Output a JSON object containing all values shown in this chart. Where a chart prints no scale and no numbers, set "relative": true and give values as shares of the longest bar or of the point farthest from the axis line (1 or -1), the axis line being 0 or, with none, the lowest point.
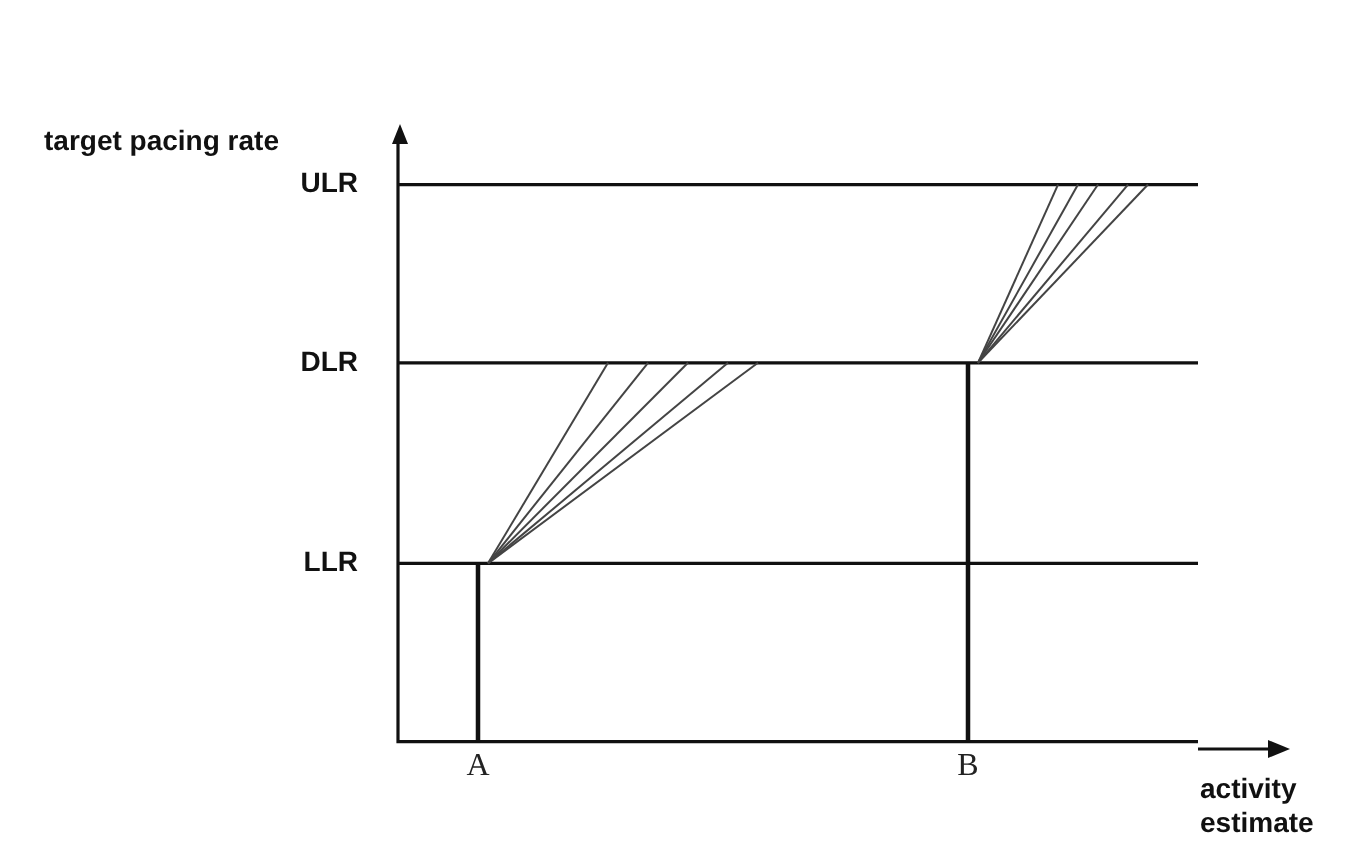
{
  "chart_data": {
    "type": "line",
    "xlabel": "activity estimate",
    "ylabel": "target pacing rate",
    "relative": true,
    "categories": [
      null,
      null,
      null,
      null,
      null,
      null,
      null,
      null,
      "A",
      null,
      null,
      null,
      null,
      null,
      null,
      null,
      null,
      null,
      null,
      null,
      null,
      null,
      null,
      null,
      null,
      null,
      null,
      null,
      null,
      null,
      null,
      null,
      null,
      null,
      null,
      null,
      null,
      null,
      null,
      null,
      null,
      null,
      null,
      null,
      null,
      null,
      null,
      null,
      null,
      null,
      null,
      null,
      null,
      null,
      null,
      null,
      null,
      "B",
      null,
      null,
      null,
      null,
      null,
      null,
      null,
      null,
      null,
      null,
      null,
      null,
      null,
      null,
      null,
      null,
      null,
      null,
      null,
      null,
      null,
      null,
      null
    ],
    "ref_lines": [
      {
        "axis": "y",
        "value": 0.32,
        "label": "LLR",
        "color": "#111111"
      },
      {
        "axis": "y",
        "value": 0.68,
        "label": "DLR",
        "color": "#111111"
      },
      {
        "axis": "y",
        "value": 1,
        "label": "ULR",
        "color": "#111111"
      }
    ],
    "series": [
      {
        "type": "bar",
        "color": "#111111",
        "values": [
          null,
          null,
          null,
          null,
          null,
          null,
          null,
          null,
          0.32,
          null,
          null,
          null,
          null,
          null,
          null,
          null,
          null,
          null,
          null,
          null,
          null,
          null,
          null,
          null,
          null,
          null,
          null,
          null,
          null,
          null,
          null,
          null,
          null,
          null,
          null,
          null,
          null,
          null,
          null,
          null,
          null,
          null,
          null,
          null,
          null,
          null,
          null,
          null,
          null,
          null,
          null,
          null,
          null,
          null,
          null,
          null,
          null,
          0.68,
          null,
          null,
          null,
          null,
          null,
          null,
          null,
          null,
          null,
          null,
          null,
          null,
          null,
          null,
          null,
          null,
          null,
          null,
          null,
          null,
          null,
          null,
          null
        ]
      },
      {
        "color": "#444444",
        "values": [
          null,
          null,
          null,
          null,
          null,
          null,
          null,
          null,
          null,
          0.32,
          null,
          null,
          null,
          null,
          null,
          null,
          null,
          null,
          null,
          null,
          null,
          0.68,
          null,
          null,
          null,
          null,
          null,
          null,
          null,
          null,
          null,
          null,
          null,
          null,
          null,
          null,
          null,
          null,
          null,
          null,
          null,
          null,
          null,
          null,
          null,
          null,
          null,
          null,
          null,
          null,
          null,
          null,
          null,
          null,
          null,
          null,
          null,
          null,
          null,
          null,
          null,
          null,
          null,
          null,
          null,
          null,
          null,
          null,
          null,
          null,
          null,
          null,
          null,
          null,
          null,
          null,
          null,
          null,
          null,
          null,
          null
        ]
      },
      {
        "color": "#444444",
        "values": [
          null,
          null,
          null,
          null,
          null,
          null,
          null,
          null,
          null,
          0.32,
          null,
          null,
          null,
          null,
          null,
          null,
          null,
          null,
          null,
          null,
          null,
          null,
          null,
          null,
          null,
          0.68,
          null,
          null,
          null,
          null,
          null,
          null,
          null,
          null,
          null,
          null,
          null,
          null,
          null,
          null,
          null,
          null,
          null,
          null,
          null,
          null,
          null,
          null,
          null,
          null,
          null,
          null,
          null,
          null,
          null,
          null,
          null,
          null,
          null,
          null,
          null,
          null,
          null,
          null,
          null,
          null,
          null,
          null,
          null,
          null,
          null,
          null,
          null,
          null,
          null,
          null,
          null,
          null,
          null,
          null,
          null
        ]
      },
      {
        "color": "#444444",
        "values": [
          null,
          null,
          null,
          null,
          null,
          null,
          null,
          null,
          null,
          0.32,
          null,
          null,
          null,
          null,
          null,
          null,
          null,
          null,
          null,
          null,
          null,
          null,
          null,
          null,
          null,
          null,
          null,
          null,
          null,
          0.68,
          null,
          null,
          null,
          null,
          null,
          null,
          null,
          null,
          null,
          null,
          null,
          null,
          null,
          null,
          null,
          null,
          null,
          null,
          null,
          null,
          null,
          null,
          null,
          null,
          null,
          null,
          null,
          null,
          null,
          null,
          null,
          null,
          null,
          null,
          null,
          null,
          null,
          null,
          null,
          null,
          null,
          null,
          null,
          null,
          null,
          null,
          null,
          null,
          null,
          null,
          null
        ]
      },
      {
        "color": "#444444",
        "values": [
          null,
          null,
          null,
          null,
          null,
          null,
          null,
          null,
          null,
          0.32,
          null,
          null,
          null,
          null,
          null,
          null,
          null,
          null,
          null,
          null,
          null,
          null,
          null,
          null,
          null,
          null,
          null,
          null,
          null,
          null,
          null,
          null,
          null,
          0.68,
          null,
          null,
          null,
          null,
          null,
          null,
          null,
          null,
          null,
          null,
          null,
          null,
          null,
          null,
          null,
          null,
          null,
          null,
          null,
          null,
          null,
          null,
          null,
          null,
          null,
          null,
          null,
          null,
          null,
          null,
          null,
          null,
          null,
          null,
          null,
          null,
          null,
          null,
          null,
          null,
          null,
          null,
          null,
          null,
          null,
          null,
          null
        ]
      },
      {
        "color": "#444444",
        "values": [
          null,
          null,
          null,
          null,
          null,
          null,
          null,
          null,
          null,
          0.32,
          null,
          null,
          null,
          null,
          null,
          null,
          null,
          null,
          null,
          null,
          null,
          null,
          null,
          null,
          null,
          null,
          null,
          null,
          null,
          null,
          null,
          null,
          null,
          null,
          null,
          null,
          0.68,
          null,
          null,
          null,
          null,
          null,
          null,
          null,
          null,
          null,
          null,
          null,
          null,
          null,
          null,
          null,
          null,
          null,
          null,
          null,
          null,
          null,
          null,
          null,
          null,
          null,
          null,
          null,
          null,
          null,
          null,
          null,
          null,
          null,
          null,
          null,
          null,
          null,
          null,
          null,
          null,
          null,
          null,
          null,
          null
        ]
      },
      {
        "color": "#444444",
        "values": [
          null,
          null,
          null,
          null,
          null,
          null,
          null,
          null,
          null,
          null,
          null,
          null,
          null,
          null,
          null,
          null,
          null,
          null,
          null,
          null,
          null,
          null,
          null,
          null,
          null,
          null,
          null,
          null,
          null,
          null,
          null,
          null,
          null,
          null,
          null,
          null,
          null,
          null,
          null,
          null,
          null,
          null,
          null,
          null,
          null,
          null,
          null,
          null,
          null,
          null,
          null,
          null,
          null,
          null,
          null,
          null,
          null,
          null,
          0.68,
          null,
          null,
          null,
          null,
          null,
          null,
          null,
          1,
          null,
          null,
          null,
          null,
          null,
          null,
          null,
          null,
          null,
          null,
          null,
          null,
          null,
          null
        ]
      },
      {
        "color": "#444444",
        "values": [
          null,
          null,
          null,
          null,
          null,
          null,
          null,
          null,
          null,
          null,
          null,
          null,
          null,
          null,
          null,
          null,
          null,
          null,
          null,
          null,
          null,
          null,
          null,
          null,
          null,
          null,
          null,
          null,
          null,
          null,
          null,
          null,
          null,
          null,
          null,
          null,
          null,
          null,
          null,
          null,
          null,
          null,
          null,
          null,
          null,
          null,
          null,
          null,
          null,
          null,
          null,
          null,
          null,
          null,
          null,
          null,
          null,
          null,
          0.68,
          null,
          null,
          null,
          null,
          null,
          null,
          null,
          null,
          null,
          1,
          null,
          null,
          null,
          null,
          null,
          null,
          null,
          null,
          null,
          null,
          null,
          null
        ]
      },
      {
        "color": "#444444",
        "values": [
          null,
          null,
          null,
          null,
          null,
          null,
          null,
          null,
          null,
          null,
          null,
          null,
          null,
          null,
          null,
          null,
          null,
          null,
          null,
          null,
          null,
          null,
          null,
          null,
          null,
          null,
          null,
          null,
          null,
          null,
          null,
          null,
          null,
          null,
          null,
          null,
          null,
          null,
          null,
          null,
          null,
          null,
          null,
          null,
          null,
          null,
          null,
          null,
          null,
          null,
          null,
          null,
          null,
          null,
          null,
          null,
          null,
          null,
          0.68,
          null,
          null,
          null,
          null,
          null,
          null,
          null,
          null,
          null,
          null,
          null,
          1,
          null,
          null,
          null,
          null,
          null,
          null,
          null,
          null,
          null,
          null
        ]
      },
      {
        "color": "#444444",
        "values": [
          null,
          null,
          null,
          null,
          null,
          null,
          null,
          null,
          null,
          null,
          null,
          null,
          null,
          null,
          null,
          null,
          null,
          null,
          null,
          null,
          null,
          null,
          null,
          null,
          null,
          null,
          null,
          null,
          null,
          null,
          null,
          null,
          null,
          null,
          null,
          null,
          null,
          null,
          null,
          null,
          null,
          null,
          null,
          null,
          null,
          null,
          null,
          null,
          null,
          null,
          null,
          null,
          null,
          null,
          null,
          null,
          null,
          null,
          0.68,
          null,
          null,
          null,
          null,
          null,
          null,
          null,
          null,
          null,
          null,
          null,
          null,
          null,
          null,
          1,
          null,
          null,
          null,
          null,
          null,
          null,
          null
        ]
      },
      {
        "color": "#444444",
        "values": [
          null,
          null,
          null,
          null,
          null,
          null,
          null,
          null,
          null,
          null,
          null,
          null,
          null,
          null,
          null,
          null,
          null,
          null,
          null,
          null,
          null,
          null,
          null,
          null,
          null,
          null,
          null,
          null,
          null,
          null,
          null,
          null,
          null,
          null,
          null,
          null,
          null,
          null,
          null,
          null,
          null,
          null,
          null,
          null,
          null,
          null,
          null,
          null,
          null,
          null,
          null,
          null,
          null,
          null,
          null,
          null,
          null,
          null,
          0.68,
          null,
          null,
          null,
          null,
          null,
          null,
          null,
          null,
          null,
          null,
          null,
          null,
          null,
          null,
          null,
          null,
          1,
          null,
          null,
          null,
          null,
          null
        ]
      }
    ]
  }
}
